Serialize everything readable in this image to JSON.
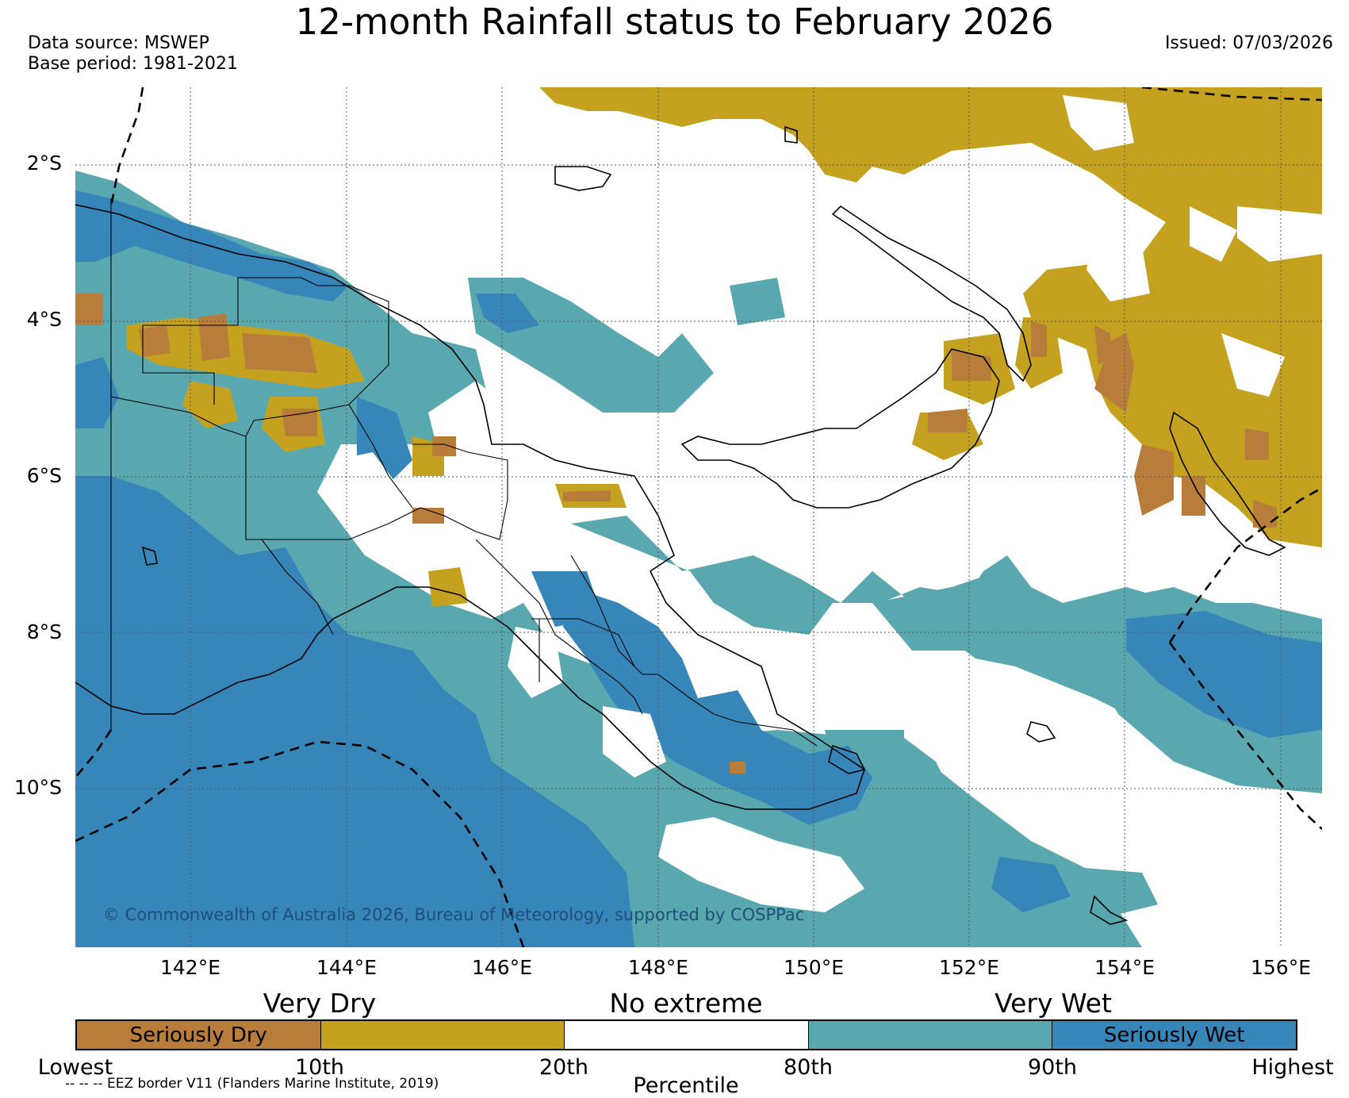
{
  "title": "12-month Rainfall status to February 2026",
  "data_source": "Data source: MSWEP",
  "base_period": "Base period: 1981-2021",
  "issued": "Issued: 07/03/2026",
  "copyright": "© Commonwealth of Australia 2026, Bureau of Meteorology, supported by COSPPac",
  "lat_labels": [
    "2°S",
    "4°S",
    "6°S",
    "8°S",
    "10°S"
  ],
  "lon_labels": [
    "142°E",
    "144°E",
    "146°E",
    "148°E",
    "150°E",
    "152°E",
    "154°E",
    "156°E"
  ],
  "legend": {
    "categories": [
      "Very Dry",
      "No extreme",
      "Very Wet"
    ],
    "segments": [
      {
        "label": "Seriously Dry",
        "color": "#b87c3b"
      },
      {
        "label": "",
        "color": "#c4a11f"
      },
      {
        "label": "",
        "color": "#ffffff"
      },
      {
        "label": "",
        "color": "#5aa8af"
      },
      {
        "label": "Seriously Wet",
        "color": "#3686ba"
      }
    ],
    "percentiles": [
      "Lowest",
      "10th",
      "20th",
      "80th",
      "90th",
      "Highest"
    ],
    "axis_label": "Percentile"
  },
  "eez_note": "-- -- -- EEZ border V11 (Flanders Marine Institute, 2019)"
}
